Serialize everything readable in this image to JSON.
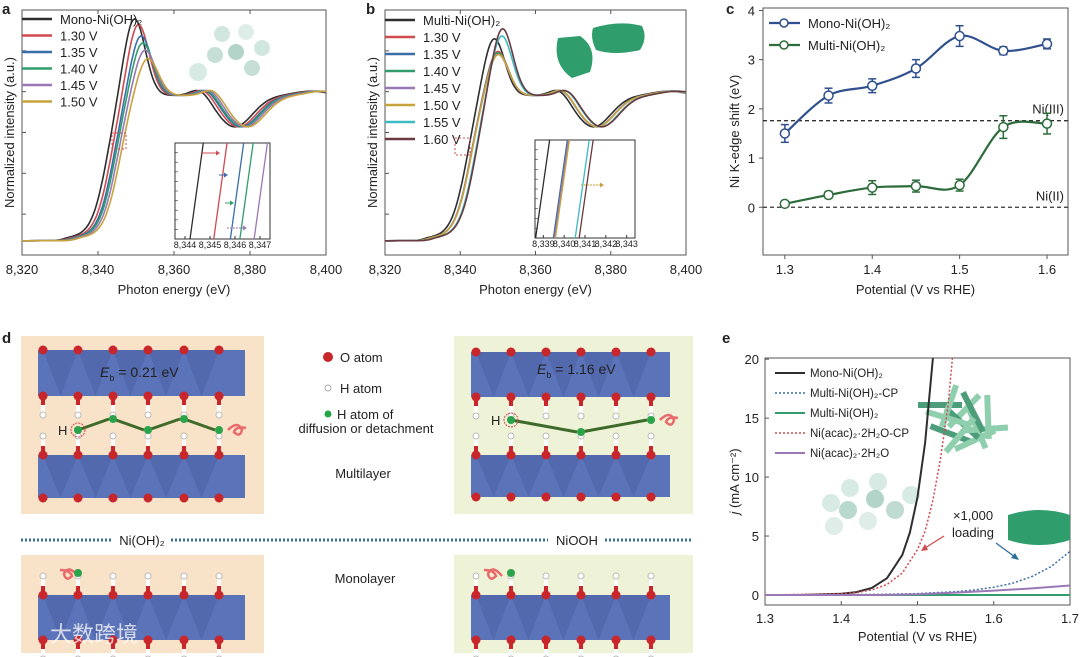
{
  "panel_labels": {
    "a": "a",
    "b": "b",
    "c": "c",
    "d": "d",
    "e": "e"
  },
  "colors": {
    "black": "#2e2e2e",
    "red": "#d04a4f",
    "blue": "#3a6ea8",
    "green": "#2f9d6c",
    "purple": "#9a78b6",
    "gold": "#c8a23c",
    "cyan": "#3ebac2",
    "brown": "#6a3a40",
    "mono_c": "#2f4f8f",
    "multi_c": "#2c6b3a",
    "peach_bg": "#f8e2c8",
    "lime_bg": "#eef3d8",
    "slab": "#5b73b8",
    "o_atom": "#c8262b",
    "h_green": "#2aa34a"
  },
  "chart_data": [
    {
      "id": "a",
      "type": "line",
      "xlabel": "Photon energy (eV)",
      "ylabel": "Normalized intensity (a.u.)",
      "xlim": [
        8320,
        8400
      ],
      "ylim": [
        -0.1,
        1.62
      ],
      "xticks": [
        "8,320",
        "8,340",
        "8,360",
        "8,380",
        "8,400"
      ],
      "xtick_values": [
        8320,
        8340,
        8360,
        8380,
        8400
      ],
      "series": [
        {
          "name": "Mono-Ni(OH)₂",
          "color": "black",
          "edge_shift_eV": 0,
          "white_line": 0.56
        },
        {
          "name": "1.30 V",
          "color": "red",
          "edge_shift_eV": 1.0,
          "white_line": 0.52
        },
        {
          "name": "1.35 V",
          "color": "blue",
          "edge_shift_eV": 1.7,
          "white_line": 0.44
        },
        {
          "name": "1.40 V",
          "color": "green",
          "edge_shift_eV": 2.1,
          "white_line": 0.39
        },
        {
          "name": "1.45 V",
          "color": "purple",
          "edge_shift_eV": 2.7,
          "white_line": 0.34
        },
        {
          "name": "1.50 V",
          "color": "gold",
          "edge_shift_eV": 3.4,
          "white_line": 0.28
        }
      ],
      "inset": {
        "xticks": [
          "8,344",
          "8,345",
          "8,346",
          "8,347"
        ],
        "xlim": [
          8343.6,
          8347.4
        ]
      }
    },
    {
      "id": "b",
      "type": "line",
      "xlabel": "Photon energy (eV)",
      "ylabel": "Normalized intensity (a.u.)",
      "xlim": [
        8320,
        8400
      ],
      "ylim": [
        -0.1,
        1.62
      ],
      "xticks": [
        "8,320",
        "8,340",
        "8,360",
        "8,380",
        "8,400"
      ],
      "xtick_values": [
        8320,
        8340,
        8360,
        8380,
        8400
      ],
      "series": [
        {
          "name": "Multi-Ni(OH)₂",
          "color": "black",
          "edge_shift_eV": -0.6,
          "white_line": 0.42
        },
        {
          "name": "1.30 V",
          "color": "red",
          "edge_shift_eV": 0.3,
          "white_line": 0.33
        },
        {
          "name": "1.35 V",
          "color": "blue",
          "edge_shift_eV": 0.3,
          "white_line": 0.32
        },
        {
          "name": "1.40 V",
          "color": "green",
          "edge_shift_eV": 0.35,
          "white_line": 0.32
        },
        {
          "name": "1.45 V",
          "color": "purple",
          "edge_shift_eV": 0.35,
          "white_line": 0.31
        },
        {
          "name": "1.50 V",
          "color": "gold",
          "edge_shift_eV": 0.4,
          "white_line": 0.31
        },
        {
          "name": "1.55 V",
          "color": "cyan",
          "edge_shift_eV": 1.4,
          "white_line": 0.44
        },
        {
          "name": "1.60 V",
          "color": "brown",
          "edge_shift_eV": 1.6,
          "white_line": 0.49
        }
      ],
      "inset": {
        "xticks": [
          "8,339",
          "8,340",
          "8,341",
          "8,342",
          "8,343"
        ],
        "xlim": [
          8338.6,
          8343.4
        ]
      }
    },
    {
      "id": "c",
      "type": "line",
      "xlabel": "Potential (V vs RHE)",
      "ylabel": "Ni K-edge shift (eV)",
      "xlim": [
        1.275,
        1.624
      ],
      "ylim": [
        -0.97,
        4.05
      ],
      "xticks": [
        1.3,
        1.4,
        1.5,
        1.6
      ],
      "yticks": [
        0,
        1,
        2,
        3,
        4
      ],
      "x": [
        1.3,
        1.35,
        1.4,
        1.45,
        1.5,
        1.55,
        1.6
      ],
      "series": [
        {
          "name": "Mono-Ni(OH)₂",
          "color": "mono_c",
          "values": [
            1.5,
            2.27,
            2.47,
            2.82,
            3.48,
            3.18,
            3.32
          ],
          "errors": [
            0.18,
            0.15,
            0.14,
            0.18,
            0.21,
            0.08,
            0.1
          ]
        },
        {
          "name": "Multi-Ni(OH)₂",
          "color": "multi_c",
          "values": [
            0.07,
            0.25,
            0.4,
            0.43,
            0.45,
            1.63,
            1.7
          ],
          "errors": [
            0.03,
            0.07,
            0.14,
            0.12,
            0.12,
            0.23,
            0.21
          ]
        }
      ],
      "reference_lines": [
        {
          "label": "Ni(III)",
          "y": 1.76
        },
        {
          "label": "Ni(II)",
          "y": 0
        }
      ]
    },
    {
      "id": "e",
      "type": "line",
      "xlabel": "Potential (V vs RHE)",
      "ylabel_main": "j",
      "ylabel_rest": " (mA cm⁻²)",
      "xlim": [
        1.3,
        1.7
      ],
      "ylim": [
        -0.85,
        20.1
      ],
      "xticks": [
        1.3,
        1.4,
        1.5,
        1.6,
        1.7
      ],
      "yticks": [
        0,
        5,
        10,
        15,
        20
      ],
      "series": [
        {
          "name": "Mono-Ni(OH)₂",
          "color": "black",
          "dash": false,
          "points": [
            [
              1.3,
              0
            ],
            [
              1.35,
              0.01
            ],
            [
              1.4,
              0.1
            ],
            [
              1.42,
              0.24
            ],
            [
              1.44,
              0.59
            ],
            [
              1.46,
              1.42
            ],
            [
              1.48,
              3.4
            ],
            [
              1.49,
              5.3
            ],
            [
              1.5,
              8.3
            ],
            [
              1.51,
              12.9
            ],
            [
              1.52,
              20
            ],
            [
              1.525,
              25
            ]
          ]
        },
        {
          "name": "Multi-Ni(OH)₂-CP",
          "color": "blue",
          "dash": true,
          "points": [
            [
              1.3,
              0
            ],
            [
              1.45,
              0.05
            ],
            [
              1.5,
              0.12
            ],
            [
              1.55,
              0.28
            ],
            [
              1.575,
              0.43
            ],
            [
              1.6,
              0.66
            ],
            [
              1.625,
              1.0
            ],
            [
              1.65,
              1.57
            ],
            [
              1.675,
              2.4
            ],
            [
              1.7,
              3.7
            ]
          ]
        },
        {
          "name": "Multi-Ni(OH)₂",
          "color": "green",
          "dash": false,
          "points": [
            [
              1.3,
              0
            ],
            [
              1.7,
              0
            ]
          ]
        },
        {
          "name": "Ni(acac)₂·2H₂O-CP",
          "color": "red",
          "dash": true,
          "points": [
            [
              1.3,
              0
            ],
            [
              1.4,
              0.1
            ],
            [
              1.42,
              0.21
            ],
            [
              1.44,
              0.43
            ],
            [
              1.46,
              0.89
            ],
            [
              1.48,
              1.86
            ],
            [
              1.5,
              3.85
            ],
            [
              1.51,
              5.4
            ],
            [
              1.52,
              8.0
            ],
            [
              1.53,
              11.5
            ],
            [
              1.54,
              16.0
            ],
            [
              1.55,
              23
            ]
          ]
        },
        {
          "name": "Ni(acac)₂·2H₂O",
          "color": "purple",
          "dash": false,
          "points": [
            [
              1.3,
              0
            ],
            [
              1.45,
              0
            ],
            [
              1.5,
              0.06
            ],
            [
              1.55,
              0.2
            ],
            [
              1.6,
              0.37
            ],
            [
              1.65,
              0.56
            ],
            [
              1.7,
              0.8
            ]
          ]
        }
      ],
      "annotation": {
        "line1": "×1,000",
        "line2": "loading"
      }
    }
  ],
  "panel_d": {
    "left_top": {
      "e": "E",
      "sub": "b",
      "rest": " = 0.21 eV"
    },
    "right_top": {
      "e": "E",
      "sub": "b",
      "rest": " = 1.16 eV"
    },
    "h_label": "H",
    "legend": {
      "o_atom": "O atom",
      "h_atom": "H atom",
      "h_diff_1": "H atom of",
      "h_diff_2": "diffusion or detachment"
    },
    "multilayer": "Multilayer",
    "monolayer": "Monolayer",
    "divider_left": "Ni(OH)₂",
    "divider_right": "NiOOH"
  },
  "watermark": "大数跨境"
}
